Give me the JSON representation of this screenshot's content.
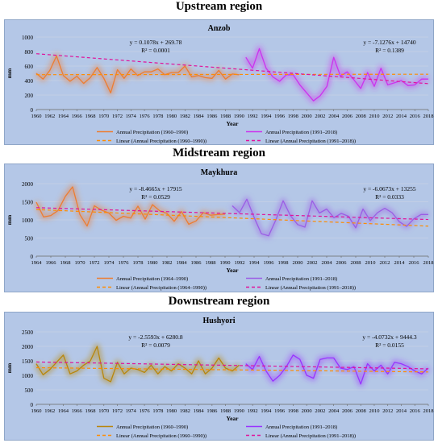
{
  "region_titles": [
    "Upstream region",
    "Midstream region",
    "Downstream region"
  ],
  "chart_data": [
    {
      "type": "line",
      "title": "Anzob",
      "xlabel": "Year",
      "ylabel": "mm",
      "ylim": [
        0,
        1000
      ],
      "yticks": [
        0,
        200,
        400,
        600,
        800,
        1000
      ],
      "xlim": [
        1960,
        2018
      ],
      "xticks": [
        1960,
        1962,
        1964,
        1966,
        1968,
        1970,
        1972,
        1974,
        1976,
        1978,
        1980,
        1982,
        1984,
        1986,
        1988,
        1990,
        1992,
        1994,
        1996,
        1998,
        2000,
        2002,
        2004,
        2006,
        2008,
        2010,
        2012,
        2014,
        2016,
        2018
      ],
      "equation_1": "y = 0.1078x + 269.78",
      "r2_1": "R² = 0.0001",
      "equation_2": "y = -7.1276x + 14740",
      "r2_2": "R² = 0.1389",
      "legend": [
        "Annual Precipitation (1960–1990)",
        "Annual Precipitation (1991–2018)",
        "Linear (Annual Precipitation (1960–1990))",
        "Linear (Annual Precipitation (1991–2018))"
      ],
      "series": [
        {
          "name": "Annual Precipitation (1960–1990)",
          "color": "#ed7d31",
          "x": [
            1960,
            1961,
            1962,
            1963,
            1964,
            1965,
            1966,
            1967,
            1968,
            1969,
            1970,
            1971,
            1972,
            1973,
            1974,
            1975,
            1976,
            1977,
            1978,
            1979,
            1980,
            1981,
            1982,
            1983,
            1984,
            1985,
            1986,
            1987,
            1988,
            1989,
            1990
          ],
          "values": [
            500,
            420,
            540,
            740,
            470,
            390,
            460,
            360,
            440,
            580,
            430,
            230,
            550,
            430,
            560,
            470,
            520,
            520,
            560,
            480,
            510,
            510,
            600,
            450,
            470,
            440,
            430,
            540,
            420,
            490,
            480
          ]
        },
        {
          "name": "Annual Precipitation (1991–2018)",
          "color": "#cc33ee",
          "x": [
            1991,
            1992,
            1993,
            1994,
            1995,
            1996,
            1997,
            1998,
            1999,
            2000,
            2001,
            2002,
            2003,
            2004,
            2005,
            2006,
            2007,
            2008,
            2009,
            2010,
            2011,
            2012,
            2013,
            2014,
            2015,
            2016,
            2017,
            2018
          ],
          "values": [
            720,
            570,
            840,
            570,
            450,
            390,
            480,
            480,
            340,
            230,
            120,
            190,
            320,
            720,
            460,
            520,
            410,
            290,
            510,
            320,
            570,
            340,
            370,
            400,
            330,
            340,
            420,
            420
          ]
        }
      ],
      "trends": [
        {
          "name": "Linear (Annual Precipitation (1960–1990))",
          "color": "#ff8c00",
          "x": [
            1960,
            2018
          ],
          "values": [
            481,
            487
          ]
        },
        {
          "name": "Linear (Annual Precipitation (1991–2018))",
          "color": "#e0139b",
          "x": [
            1960,
            2018
          ],
          "values": [
            770,
            357
          ]
        }
      ]
    },
    {
      "type": "line",
      "title": "Maykhura",
      "xlabel": "Year",
      "ylabel": "mm",
      "ylim": [
        0,
        2000
      ],
      "yticks": [
        0,
        500,
        1000,
        1500,
        2000
      ],
      "xlim": [
        1964,
        2018
      ],
      "xticks": [
        1964,
        1966,
        1968,
        1970,
        1972,
        1974,
        1976,
        1978,
        1980,
        1982,
        1984,
        1986,
        1988,
        1990,
        1992,
        1994,
        1996,
        1998,
        2000,
        2002,
        2004,
        2006,
        2008,
        2010,
        2012,
        2014,
        2016,
        2018
      ],
      "equation_1": "y = -8.4665x + 17915",
      "r2_1": "R² = 0.0529",
      "equation_2": "y = -6.0673x + 13255",
      "r2_2": "R² = 0.0333",
      "legend": [
        "Annual Precipitation (1964–1990)",
        "Annual Precipitation (1991–2018)",
        "Linear (Annual Precipitation (1964–1990))",
        "Linear (Annual Precipitation (1991–2018))"
      ],
      "series": [
        {
          "name": "Annual Precipitation (1964–1990)",
          "color": "#ed7d31",
          "x": [
            1964,
            1965,
            1966,
            1967,
            1968,
            1969,
            1970,
            1971,
            1972,
            1973,
            1974,
            1975,
            1976,
            1977,
            1978,
            1979,
            1980,
            1981,
            1982,
            1983,
            1984,
            1985,
            1986,
            1987,
            1988,
            1989,
            1990
          ],
          "values": [
            1490,
            1080,
            1120,
            1260,
            1650,
            1910,
            1150,
            830,
            1390,
            1270,
            1190,
            990,
            1100,
            1050,
            1380,
            1020,
            1420,
            1250,
            1180,
            960,
            1230,
            880,
            970,
            1200,
            1130,
            1150,
            1160
          ]
        },
        {
          "name": "Annual Precipitation (1991–2018)",
          "color": "#9b5de5",
          "x": [
            1991,
            1992,
            1993,
            1994,
            1995,
            1996,
            1997,
            1998,
            1999,
            2000,
            2001,
            2002,
            2003,
            2004,
            2005,
            2006,
            2007,
            2008,
            2009,
            2010,
            2011,
            2012,
            2013,
            2014,
            2015,
            2016,
            2017,
            2018
          ],
          "values": [
            1390,
            1200,
            1570,
            1070,
            620,
            560,
            1000,
            1530,
            1120,
            870,
            800,
            1530,
            1190,
            1300,
            1060,
            1180,
            1100,
            780,
            1300,
            980,
            1200,
            1320,
            1200,
            950,
            820,
            1030,
            1150,
            1150
          ]
        }
      ],
      "trends": [
        {
          "name": "Linear (Annual Precipitation (1964–1990))",
          "color": "#ff8c00",
          "x": [
            1964,
            2018
          ],
          "values": [
            1285,
            828
          ]
        },
        {
          "name": "Linear (Annual Precipitation (1991–2018))",
          "color": "#e0139b",
          "x": [
            1964,
            2018
          ],
          "values": [
            1338,
            1010
          ]
        }
      ]
    },
    {
      "type": "line",
      "title": "Hushyori",
      "xlabel": "Year",
      "ylabel": "mm",
      "ylim": [
        0,
        2500
      ],
      "yticks": [
        0,
        500,
        1000,
        1500,
        2000,
        2500
      ],
      "xlim": [
        1960,
        2018
      ],
      "xticks": [
        1960,
        1962,
        1964,
        1966,
        1968,
        1970,
        1972,
        1974,
        1976,
        1978,
        1980,
        1982,
        1984,
        1986,
        1988,
        1990,
        1992,
        1994,
        1996,
        1998,
        2000,
        2002,
        2004,
        2006,
        2008,
        2010,
        2012,
        2014,
        2016,
        2018
      ],
      "equation_1": "y = -2.5593x + 6280.8",
      "r2_1": "R² = 0.0079",
      "equation_2": "y = -4.0732x + 9444.3",
      "r2_2": "R² = 0.0155",
      "legend": [
        "Annual Precipitation (1960–1990)",
        "Annual Precipitation (1991–2018)",
        "Linear (Annual Precipitation (1960–1990))",
        "Linear (Annual Precipitation (1991–2018))"
      ],
      "series": [
        {
          "name": "Annual Precipitation (1960–1990)",
          "color": "#b8860b",
          "x": [
            1960,
            1961,
            1962,
            1963,
            1964,
            1965,
            1966,
            1967,
            1968,
            1969,
            1970,
            1971,
            1972,
            1973,
            1974,
            1975,
            1976,
            1977,
            1978,
            1979,
            1980,
            1981,
            1982,
            1983,
            1984,
            1985,
            1986,
            1987,
            1988,
            1989,
            1990
          ],
          "values": [
            1400,
            1020,
            1200,
            1450,
            1700,
            1050,
            1150,
            1350,
            1500,
            2000,
            900,
            780,
            1450,
            1050,
            1250,
            1200,
            1100,
            1350,
            1050,
            1300,
            1150,
            1400,
            1250,
            1050,
            1500,
            1050,
            1250,
            1600,
            1250,
            1150,
            1350
          ]
        },
        {
          "name": "Annual Precipitation (1991–2018)",
          "color": "#9933ff",
          "x": [
            1991,
            1992,
            1993,
            1994,
            1995,
            1996,
            1997,
            1998,
            1999,
            2000,
            2001,
            2002,
            2003,
            2004,
            2005,
            2006,
            2007,
            2008,
            2009,
            2010,
            2011,
            2012,
            2013,
            2014,
            2015,
            2016,
            2017,
            2018
          ],
          "values": [
            1400,
            1200,
            1650,
            1150,
            800,
            1000,
            1300,
            1700,
            1550,
            1000,
            900,
            1550,
            1600,
            1600,
            1250,
            1200,
            1300,
            700,
            1400,
            1150,
            1350,
            1050,
            1450,
            1400,
            1300,
            1150,
            1050,
            1250
          ]
        }
      ],
      "trends": [
        {
          "name": "Linear (Annual Precipitation (1960–1990))",
          "color": "#ff8c00",
          "x": [
            1960,
            2018
          ],
          "values": [
            1264,
            1116
          ]
        },
        {
          "name": "Linear (Annual Precipitation (1991–2018))",
          "color": "#e0139b",
          "x": [
            1960,
            2018
          ],
          "values": [
            1461,
            1224
          ]
        }
      ]
    }
  ]
}
